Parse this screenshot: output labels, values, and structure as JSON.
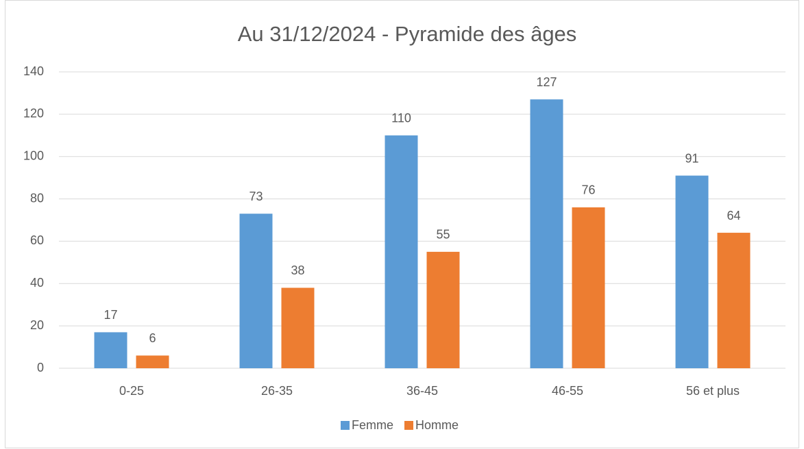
{
  "chart_data": {
    "type": "bar",
    "title": "Au 31/12/2024 - Pyramide des âges",
    "categories": [
      "0-25",
      "26-35",
      "36-45",
      "46-55",
      "56 et plus"
    ],
    "series": [
      {
        "name": "Femme",
        "color": "#5b9bd5",
        "values": [
          17,
          73,
          110,
          127,
          91
        ]
      },
      {
        "name": "Homme",
        "color": "#ed7d31",
        "values": [
          6,
          38,
          55,
          76,
          64
        ]
      }
    ],
    "ylim": [
      0,
      140
    ],
    "yticks": [
      0,
      20,
      40,
      60,
      80,
      100,
      120,
      140
    ],
    "grid": true,
    "legend": "bottom"
  }
}
